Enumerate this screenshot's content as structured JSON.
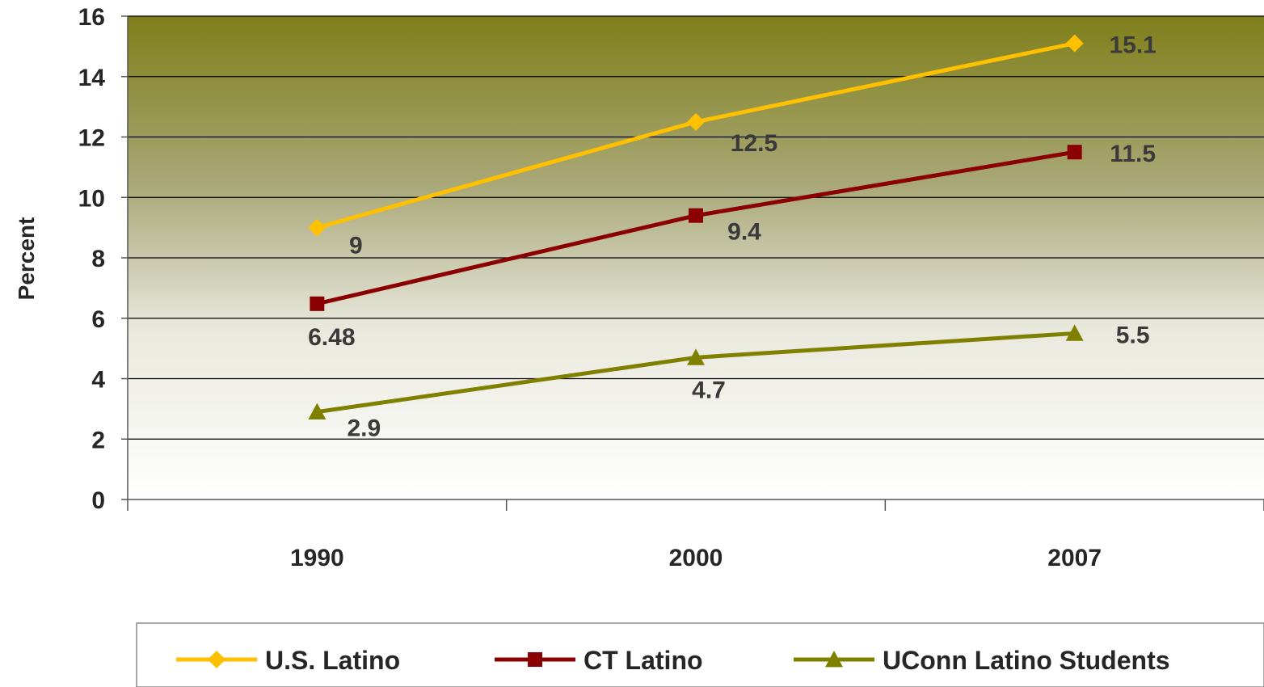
{
  "chart_data": {
    "type": "line",
    "categories": [
      "1990",
      "2000",
      "2007"
    ],
    "ylabel": "Percent",
    "xlabel": "",
    "ylim": [
      0,
      16
    ],
    "yticks": [
      0,
      2,
      4,
      6,
      8,
      10,
      12,
      14,
      16
    ],
    "grid": true,
    "legend_position": "bottom",
    "series": [
      {
        "name": "U.S. Latino",
        "values": [
          9,
          12.5,
          15.1
        ],
        "labels": [
          "9",
          "12.5",
          "15.1"
        ],
        "color": "#FFC000",
        "marker": "diamond"
      },
      {
        "name": "CT Latino",
        "values": [
          6.48,
          9.4,
          11.5
        ],
        "labels": [
          "6.48",
          "9.4",
          "11.5"
        ],
        "color": "#8B0000",
        "marker": "square"
      },
      {
        "name": "UConn Latino Students",
        "values": [
          2.9,
          4.7,
          5.5
        ],
        "labels": [
          "2.9",
          "4.7",
          "5.5"
        ],
        "color": "#808000",
        "marker": "triangle"
      }
    ],
    "background_gradient": [
      "#7F7F1A",
      "#FFFFFF"
    ]
  }
}
